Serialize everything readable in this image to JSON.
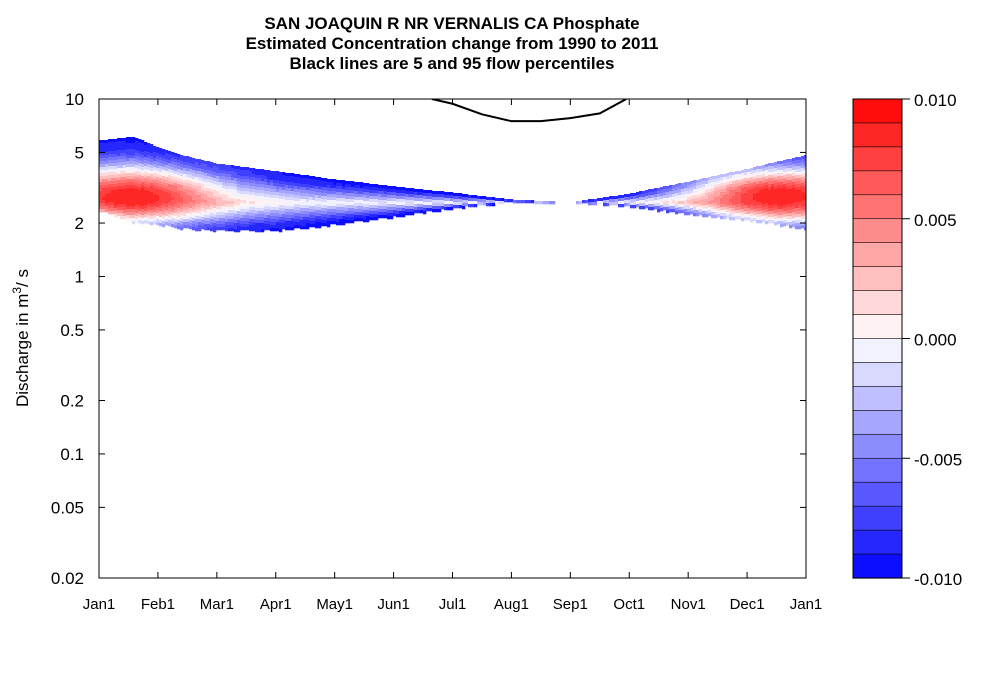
{
  "chart_data": {
    "type": "heatmap",
    "title": "SAN JOAQUIN R NR VERNALIS CA  Phosphate",
    "subtitle": "Estimated Concentration change from 1990 to 2011",
    "subtitle2": "Black lines are 5 and 95 flow percentiles",
    "ylabel": "Discharge in m",
    "ylabel_sup": "3",
    "ylabel_unit": "/ s",
    "y_scale": "log",
    "ylim": [
      0.02,
      10
    ],
    "yticks": [
      {
        "v": 10,
        "label": "10"
      },
      {
        "v": 5,
        "label": "5"
      },
      {
        "v": 2,
        "label": "2"
      },
      {
        "v": 1,
        "label": "1"
      },
      {
        "v": 0.5,
        "label": "0.5"
      },
      {
        "v": 0.2,
        "label": "0.2"
      },
      {
        "v": 0.1,
        "label": "0.1"
      },
      {
        "v": 0.05,
        "label": "0.05"
      },
      {
        "v": 0.02,
        "label": "0.02"
      }
    ],
    "xticks": [
      "Jan1",
      "Feb1",
      "Mar1",
      "Apr1",
      "May1",
      "Jun1",
      "Jul1",
      "Aug1",
      "Sep1",
      "Oct1",
      "Nov1",
      "Dec1",
      "Jan1"
    ],
    "grid": false,
    "colorbar": {
      "min": -0.01,
      "max": 0.01,
      "levels": 20,
      "labels": [
        {
          "v": 0.01,
          "label": "0.010"
        },
        {
          "v": 0.005,
          "label": "0.005"
        },
        {
          "v": 0.0,
          "label": "0.000"
        },
        {
          "v": -0.005,
          "label": "-0.005"
        },
        {
          "v": -0.01,
          "label": "-0.010"
        }
      ],
      "colors": {
        "high": "#ff0000",
        "mid": "#ffffff",
        "low": "#0000ff"
      }
    },
    "band": {
      "month": [
        0,
        0.6,
        1,
        1.4,
        2,
        3,
        4,
        5,
        6,
        7,
        8,
        9,
        10,
        11,
        12
      ],
      "q_low": [
        2.35,
        2.0,
        1.95,
        1.85,
        1.8,
        1.8,
        1.95,
        2.15,
        2.4,
        2.6,
        2.6,
        2.45,
        2.25,
        2.05,
        1.85
      ],
      "q_high": [
        5.8,
        6.1,
        5.3,
        4.8,
        4.3,
        3.9,
        3.5,
        3.2,
        2.95,
        2.7,
        2.6,
        2.9,
        3.4,
        4.0,
        4.8
      ],
      "q_mid": [
        2.65,
        2.7,
        2.7,
        2.65,
        2.6,
        2.6,
        2.6,
        2.6,
        2.6,
        2.6,
        2.6,
        2.6,
        2.6,
        2.6,
        2.6
      ],
      "edge_value": -0.0095
    },
    "hotspots": [
      {
        "center_month": 0.55,
        "center_q": 2.8,
        "peak_value": 0.009,
        "reach_months": 1.6
      },
      {
        "center_month": 11.55,
        "center_q": 2.85,
        "peak_value": 0.009,
        "reach_months": 1.6
      }
    ],
    "percentile_lines": [
      {
        "name": "95 flow percentile",
        "month": [
          5.65,
          6.0,
          6.5,
          7.0,
          7.5,
          8.0,
          8.5,
          8.95
        ],
        "q": [
          10.0,
          9.4,
          8.2,
          7.5,
          7.5,
          7.8,
          8.3,
          10.0
        ]
      },
      {
        "name": "5 flow percentile",
        "month": [],
        "q": []
      }
    ]
  }
}
